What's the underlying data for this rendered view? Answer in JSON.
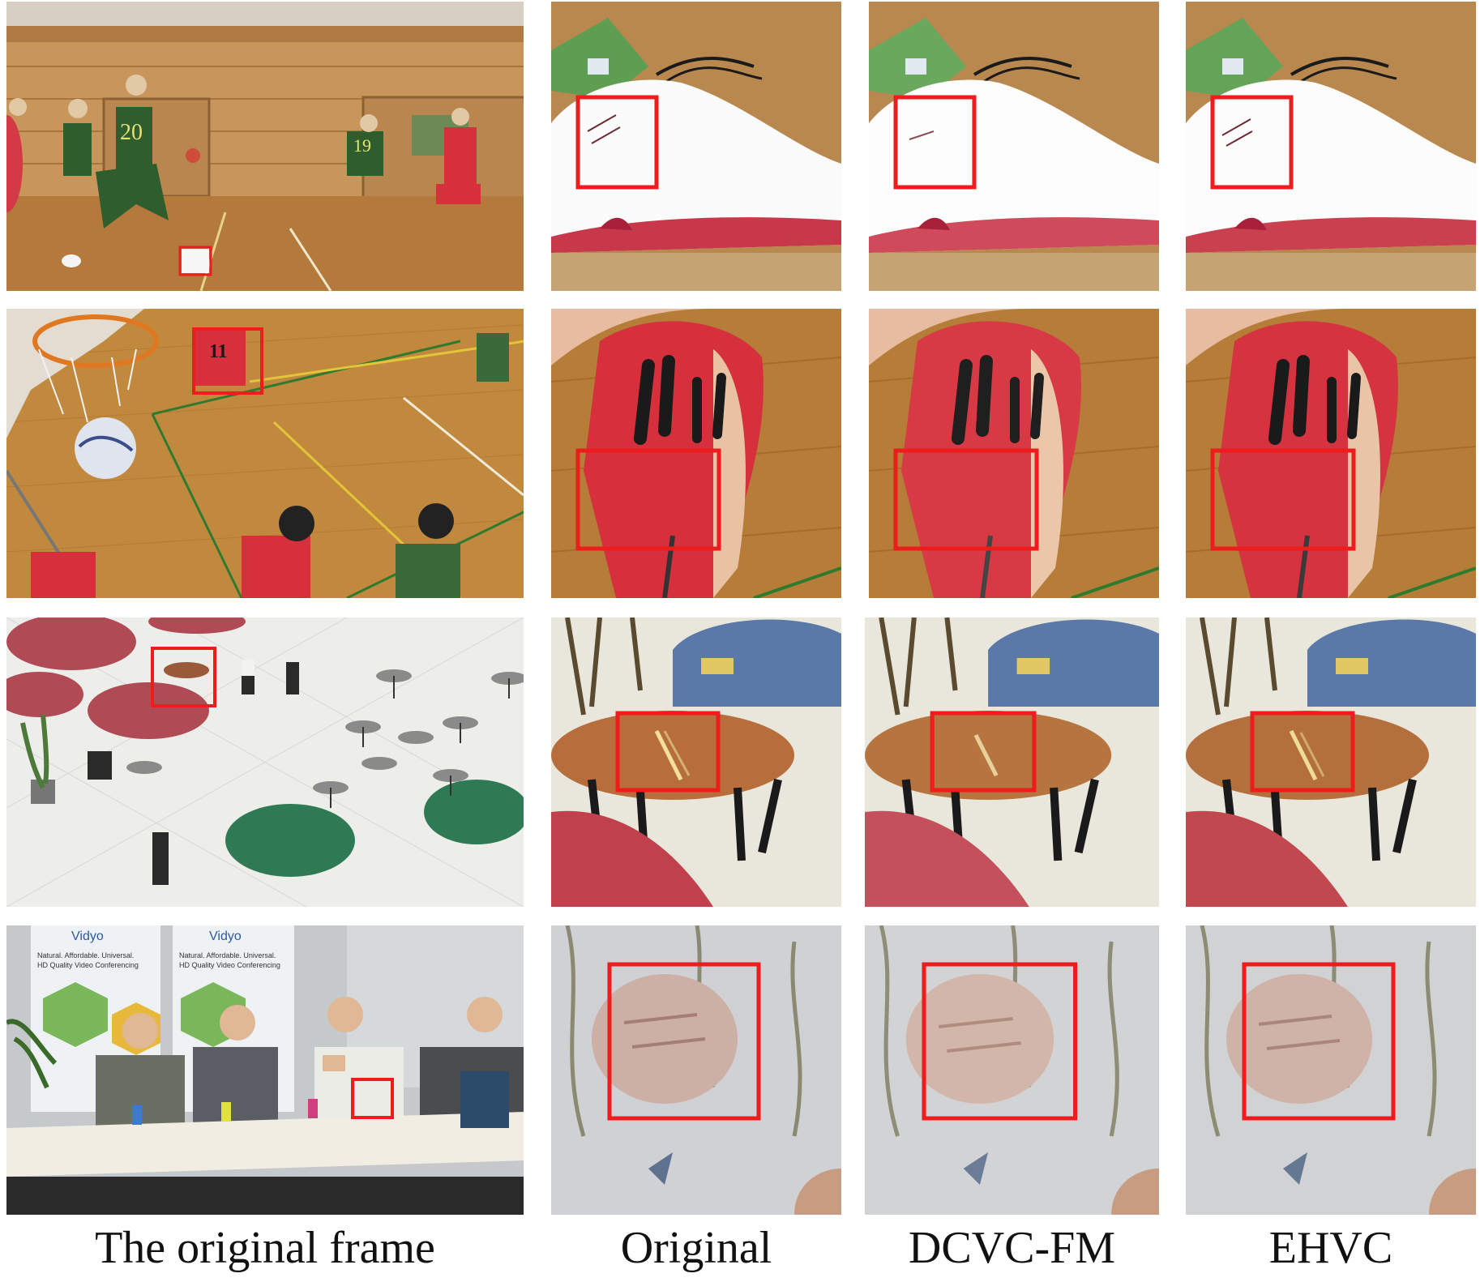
{
  "captions": {
    "original_frame": "The original frame",
    "original": "Original",
    "dcvc_fm": "DCVC-FM",
    "ehvc": "EHVC"
  },
  "frames": {
    "row1": {
      "jersey_a": "20",
      "jersey_b": "19"
    },
    "row2": {
      "jersey": "11"
    },
    "row4": {
      "banner_brand": "Vidyo",
      "banner_line1": "Natural. Affordable. Universal.",
      "banner_line2": "HD Quality Video Conferencing"
    }
  },
  "colors": {
    "highlight_box": "#ee1c1c"
  }
}
